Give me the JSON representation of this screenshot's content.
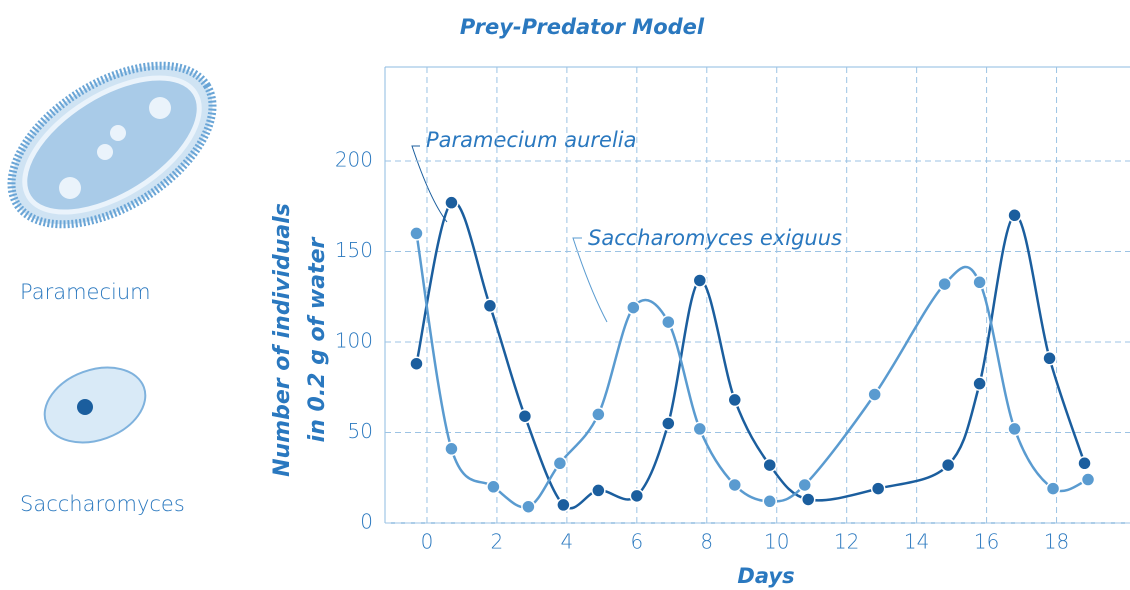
{
  "chart_data": {
    "type": "line",
    "title": "Prey-Predator Model",
    "xlabel": "Days",
    "ylabel": [
      "Number of individuals",
      "in 0.2 g of water"
    ],
    "xlim": [
      -1.2,
      20.1
    ],
    "xticks": [
      0,
      2,
      4,
      6,
      8,
      10,
      12,
      14,
      16,
      18
    ],
    "ylim": [
      0,
      250
    ],
    "yticks": [
      0,
      50,
      100,
      150,
      200
    ],
    "grid": true,
    "series": [
      {
        "name": "Paramecium aurelia",
        "color": "#1b5e9e",
        "x": [
          -0.3,
          0.7,
          1.8,
          2.8,
          3.9,
          4.9,
          6,
          6.9,
          7.8,
          8.8,
          9.8,
          10.9,
          12.9,
          14.9,
          15.8,
          16.8,
          17.8,
          18.8
        ],
        "values": [
          88,
          177,
          120,
          59,
          10,
          18,
          15,
          55,
          134,
          68,
          32,
          13,
          19,
          32,
          77,
          170,
          91,
          33
        ]
      },
      {
        "name": "Saccharomyces exiguus",
        "color": "#5a9bd0",
        "x": [
          -0.3,
          0.7,
          1.9,
          2.9,
          3.8,
          4.9,
          5.9,
          6.9,
          7.8,
          8.8,
          9.8,
          10.8,
          12.8,
          14.8,
          15.8,
          16.8,
          17.9,
          18.9
        ],
        "values": [
          160,
          41,
          20,
          9,
          33,
          60,
          119,
          111,
          52,
          21,
          12,
          21,
          71,
          132,
          133,
          52,
          19,
          24
        ]
      }
    ]
  },
  "illustrations": [
    "Paramecium",
    "Saccharomyces"
  ]
}
